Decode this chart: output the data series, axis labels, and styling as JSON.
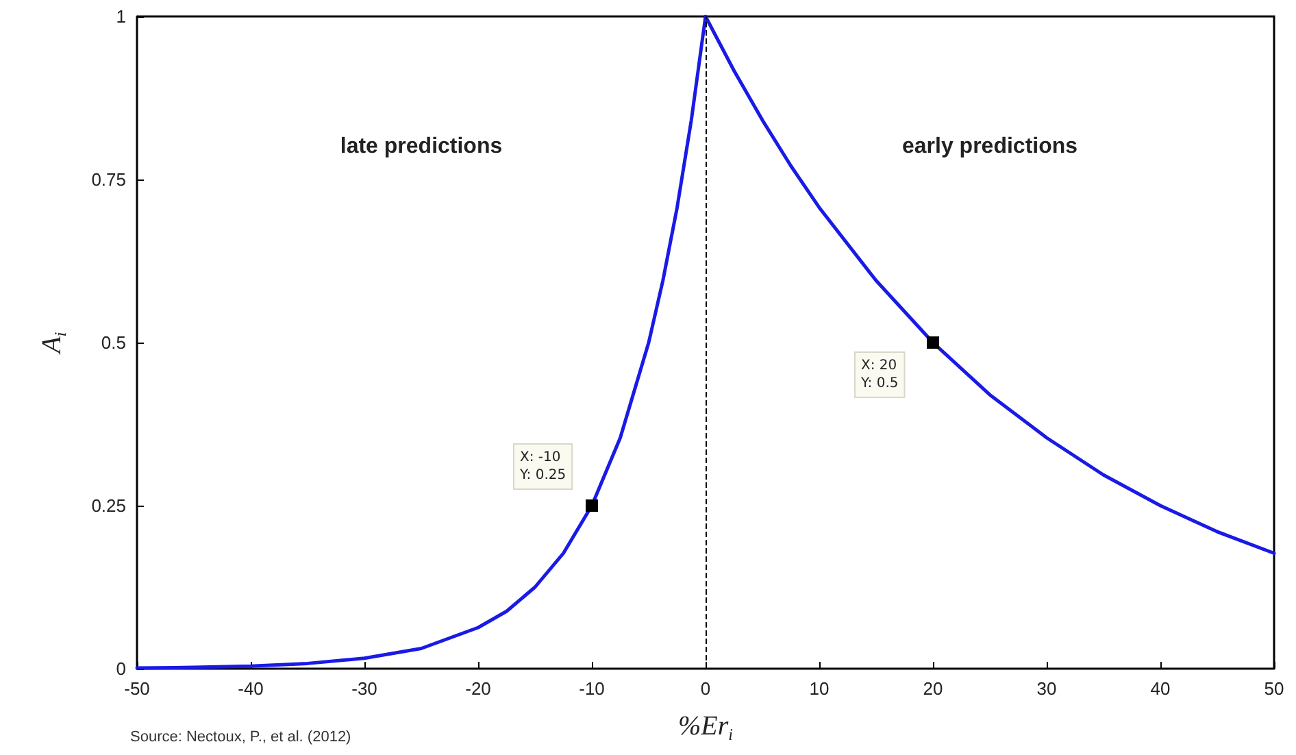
{
  "chart_data": {
    "type": "line",
    "xlabel": "%Er$_{i}$",
    "ylabel": "A$_{i}$",
    "x": [
      -50,
      -45,
      -40,
      -35,
      -30,
      -25,
      -20,
      -17.5,
      -15,
      -12.5,
      -10,
      -7.5,
      -5,
      -3.75,
      -2.5,
      -1.25,
      0,
      2.5,
      5,
      7.5,
      10,
      15,
      20,
      25,
      30,
      35,
      40,
      45,
      50
    ],
    "series": [
      {
        "color": "#1a1ae6",
        "values": [
          0.001,
          0.002,
          0.004,
          0.008,
          0.016,
          0.031,
          0.063,
          0.088,
          0.125,
          0.177,
          0.25,
          0.354,
          0.5,
          0.595,
          0.707,
          0.841,
          1,
          0.917,
          0.841,
          0.771,
          0.707,
          0.595,
          0.5,
          0.42,
          0.354,
          0.297,
          0.25,
          0.21,
          0.177
        ]
      }
    ],
    "xlim": [
      -50,
      50
    ],
    "xticks": [
      -50,
      -40,
      -30,
      -20,
      -10,
      0,
      10,
      20,
      30,
      40,
      50
    ],
    "ylim": [
      0,
      1
    ],
    "yticks": [
      0,
      0.25,
      0.5,
      0.75,
      1
    ],
    "grid": false,
    "marker": "none",
    "line_style": "solid",
    "ref_lines": [
      {
        "axis": "x",
        "value": 0,
        "color": "#000000",
        "line_style": "dashed"
      }
    ],
    "annotations": [
      {
        "text": "X: -10\nY: 0.25",
        "x": -10,
        "y": 0.25
      },
      {
        "text": "X: 20\nY: 0.5",
        "x": 20,
        "y": 0.5
      },
      "late predictions",
      "early predictions",
      "Source: Nectoux, P., et al. (2012)"
    ]
  }
}
